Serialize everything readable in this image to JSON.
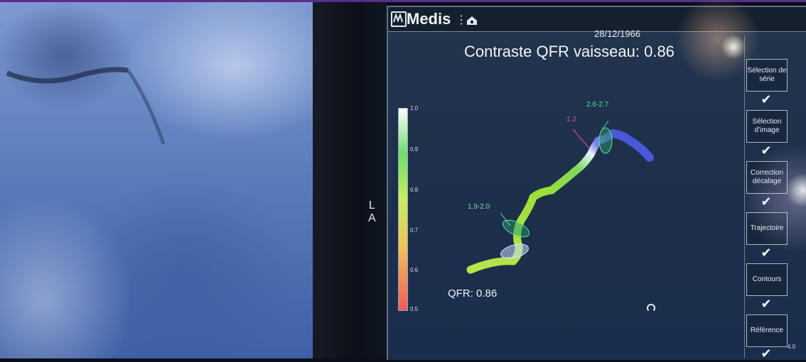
{
  "app": {
    "brand": "Medis",
    "date": "28/12/1966",
    "menu_glyph": "⋮"
  },
  "main": {
    "title": "Contraste QFR vaisseau: 0.86",
    "orientation_label": [
      "L",
      "A"
    ],
    "qfr_value_label": "QFR: 0.86",
    "color_scale": [
      "1.0",
      "0.9",
      "0.8",
      "0.7",
      "0.6",
      "0.5"
    ],
    "annotations": [
      {
        "text": "2.6-2.7",
        "color": "#4fe39a"
      },
      {
        "text": "1.2",
        "color": "#e0529c"
      },
      {
        "text": "1.9-2.0",
        "color": "#6be6a6"
      }
    ],
    "mini_scale_value": "4.0"
  },
  "sidebar": {
    "steps": [
      {
        "label": "Sélection de série",
        "done": true
      },
      {
        "label": "Sélection d’image",
        "done": true
      },
      {
        "label": "Correction décalage",
        "done": true
      },
      {
        "label": "Trajectoire",
        "done": true
      },
      {
        "label": "Contours",
        "done": true
      },
      {
        "label": "Référence",
        "done": true
      }
    ],
    "check_glyph": "✔"
  },
  "colors": {
    "accent": "#5a2d8a",
    "vessel_green": "#a6e23a",
    "vessel_blue": "#4b5bd6"
  },
  "icons": [
    "medis-logo-icon",
    "menu-icon",
    "home-icon",
    "checkmark-icon"
  ]
}
